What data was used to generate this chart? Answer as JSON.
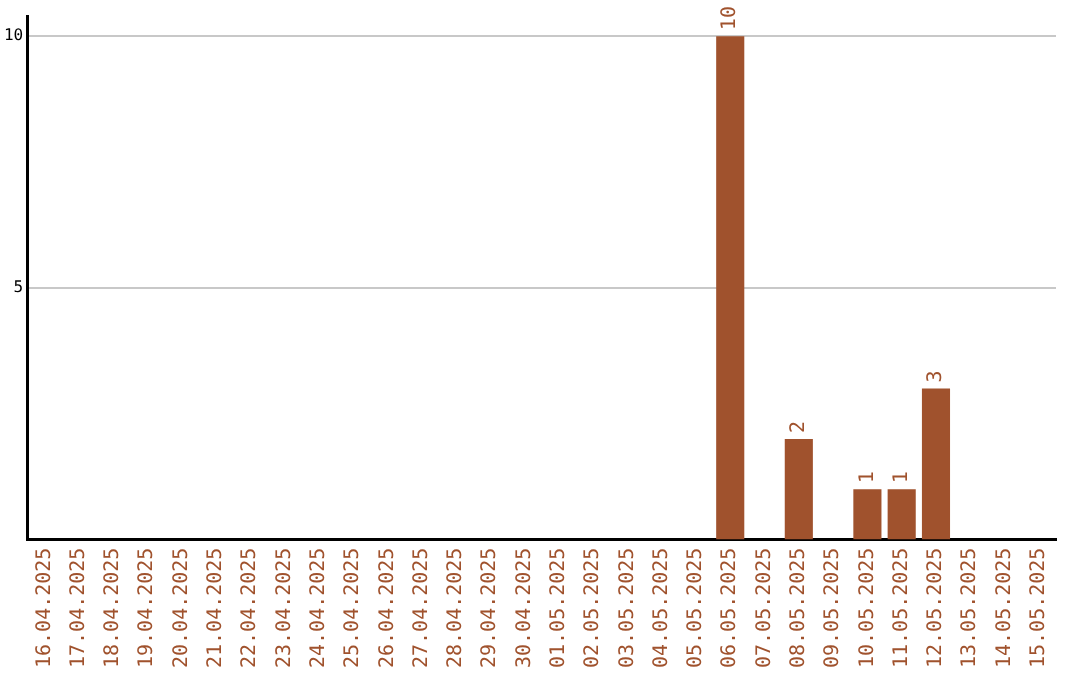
{
  "chart_data": {
    "type": "bar",
    "categories": [
      "16.04.2025",
      "17.04.2025",
      "18.04.2025",
      "19.04.2025",
      "20.04.2025",
      "21.04.2025",
      "22.04.2025",
      "23.04.2025",
      "24.04.2025",
      "25.04.2025",
      "26.04.2025",
      "27.04.2025",
      "28.04.2025",
      "29.04.2025",
      "30.04.2025",
      "01.05.2025",
      "02.05.2025",
      "03.05.2025",
      "04.05.2025",
      "05.05.2025",
      "06.05.2025",
      "07.05.2025",
      "08.05.2025",
      "09.05.2025",
      "10.05.2025",
      "11.05.2025",
      "12.05.2025",
      "13.05.2025",
      "14.05.2025",
      "15.05.2025"
    ],
    "values": [
      0,
      0,
      0,
      0,
      0,
      0,
      0,
      0,
      0,
      0,
      0,
      0,
      0,
      0,
      0,
      0,
      0,
      0,
      0,
      0,
      10,
      0,
      2,
      0,
      1,
      1,
      3,
      0,
      0,
      0
    ],
    "value_labels": [
      null,
      null,
      null,
      null,
      null,
      null,
      null,
      null,
      null,
      null,
      null,
      null,
      null,
      null,
      null,
      null,
      null,
      null,
      null,
      null,
      "10",
      null,
      "2",
      null,
      "1",
      "1",
      "3",
      null,
      null,
      null
    ],
    "color": "#a0522d",
    "ylim": [
      0,
      10.4
    ],
    "yticks": [
      5,
      10
    ],
    "grid": "y",
    "legend": false
  }
}
